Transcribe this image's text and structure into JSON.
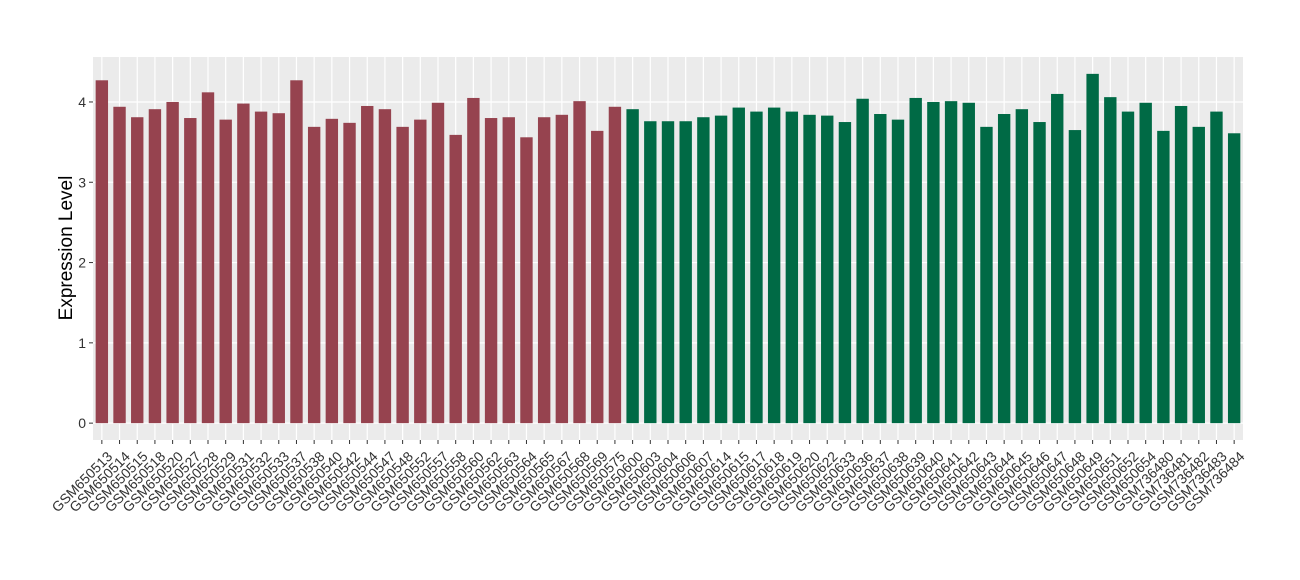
{
  "chart_data": {
    "type": "bar",
    "y_label": "Expression Level",
    "categories": [
      "GSM650513",
      "GSM650514",
      "GSM650515",
      "GSM650518",
      "GSM650520",
      "GSM650527",
      "GSM650528",
      "GSM650529",
      "GSM650531",
      "GSM650532",
      "GSM650533",
      "GSM650537",
      "GSM650538",
      "GSM650540",
      "GSM650542",
      "GSM650544",
      "GSM650547",
      "GSM650548",
      "GSM650552",
      "GSM650557",
      "GSM650558",
      "GSM650560",
      "GSM650562",
      "GSM650563",
      "GSM650564",
      "GSM650565",
      "GSM650567",
      "GSM650568",
      "GSM650569",
      "GSM650575",
      "GSM650600",
      "GSM650603",
      "GSM650604",
      "GSM650606",
      "GSM650607",
      "GSM650614",
      "GSM650615",
      "GSM650617",
      "GSM650618",
      "GSM650619",
      "GSM650620",
      "GSM650622",
      "GSM650633",
      "GSM650636",
      "GSM650637",
      "GSM650638",
      "GSM650639",
      "GSM650640",
      "GSM650641",
      "GSM650642",
      "GSM650643",
      "GSM650644",
      "GSM650645",
      "GSM650646",
      "GSM650647",
      "GSM650648",
      "GSM650649",
      "GSM650651",
      "GSM650652",
      "GSM650654",
      "GSM736480",
      "GSM736481",
      "GSM736482",
      "GSM736483",
      "GSM736484"
    ],
    "values": [
      4.27,
      3.94,
      3.81,
      3.91,
      4.0,
      3.8,
      4.12,
      3.78,
      3.98,
      3.88,
      3.86,
      4.27,
      3.69,
      3.79,
      3.74,
      3.95,
      3.91,
      3.69,
      3.78,
      3.99,
      3.59,
      4.05,
      3.8,
      3.81,
      3.56,
      3.81,
      3.84,
      4.01,
      3.64,
      3.94,
      3.91,
      3.76,
      3.76,
      3.76,
      3.81,
      3.83,
      3.93,
      3.88,
      3.93,
      3.88,
      3.84,
      3.83,
      3.75,
      4.04,
      3.85,
      3.78,
      4.05,
      4.0,
      4.01,
      3.99,
      3.69,
      3.85,
      3.91,
      3.75,
      4.1,
      3.65,
      4.35,
      4.06,
      3.88,
      3.99,
      3.64,
      3.95,
      3.69,
      3.88,
      3.61
    ],
    "bar_colors": [
      "#96434f",
      "#96434f",
      "#96434f",
      "#96434f",
      "#96434f",
      "#96434f",
      "#96434f",
      "#96434f",
      "#96434f",
      "#96434f",
      "#96434f",
      "#96434f",
      "#96434f",
      "#96434f",
      "#96434f",
      "#96434f",
      "#96434f",
      "#96434f",
      "#96434f",
      "#96434f",
      "#96434f",
      "#96434f",
      "#96434f",
      "#96434f",
      "#96434f",
      "#96434f",
      "#96434f",
      "#96434f",
      "#96434f",
      "#96434f",
      "#006a45",
      "#006a45",
      "#006a45",
      "#006a45",
      "#006a45",
      "#006a45",
      "#006a45",
      "#006a45",
      "#006a45",
      "#006a45",
      "#006a45",
      "#006a45",
      "#006a45",
      "#006a45",
      "#006a45",
      "#006a45",
      "#006a45",
      "#006a45",
      "#006a45",
      "#006a45",
      "#006a45",
      "#006a45",
      "#006a45",
      "#006a45",
      "#006a45",
      "#006a45",
      "#006a45",
      "#006a45",
      "#006a45",
      "#006a45",
      "#006a45",
      "#006a45",
      "#006a45",
      "#006a45",
      "#006a45"
    ],
    "ylim": [
      -0.21,
      4.56
    ],
    "yticks": [
      0,
      1,
      2,
      3,
      4
    ],
    "grid": true
  }
}
